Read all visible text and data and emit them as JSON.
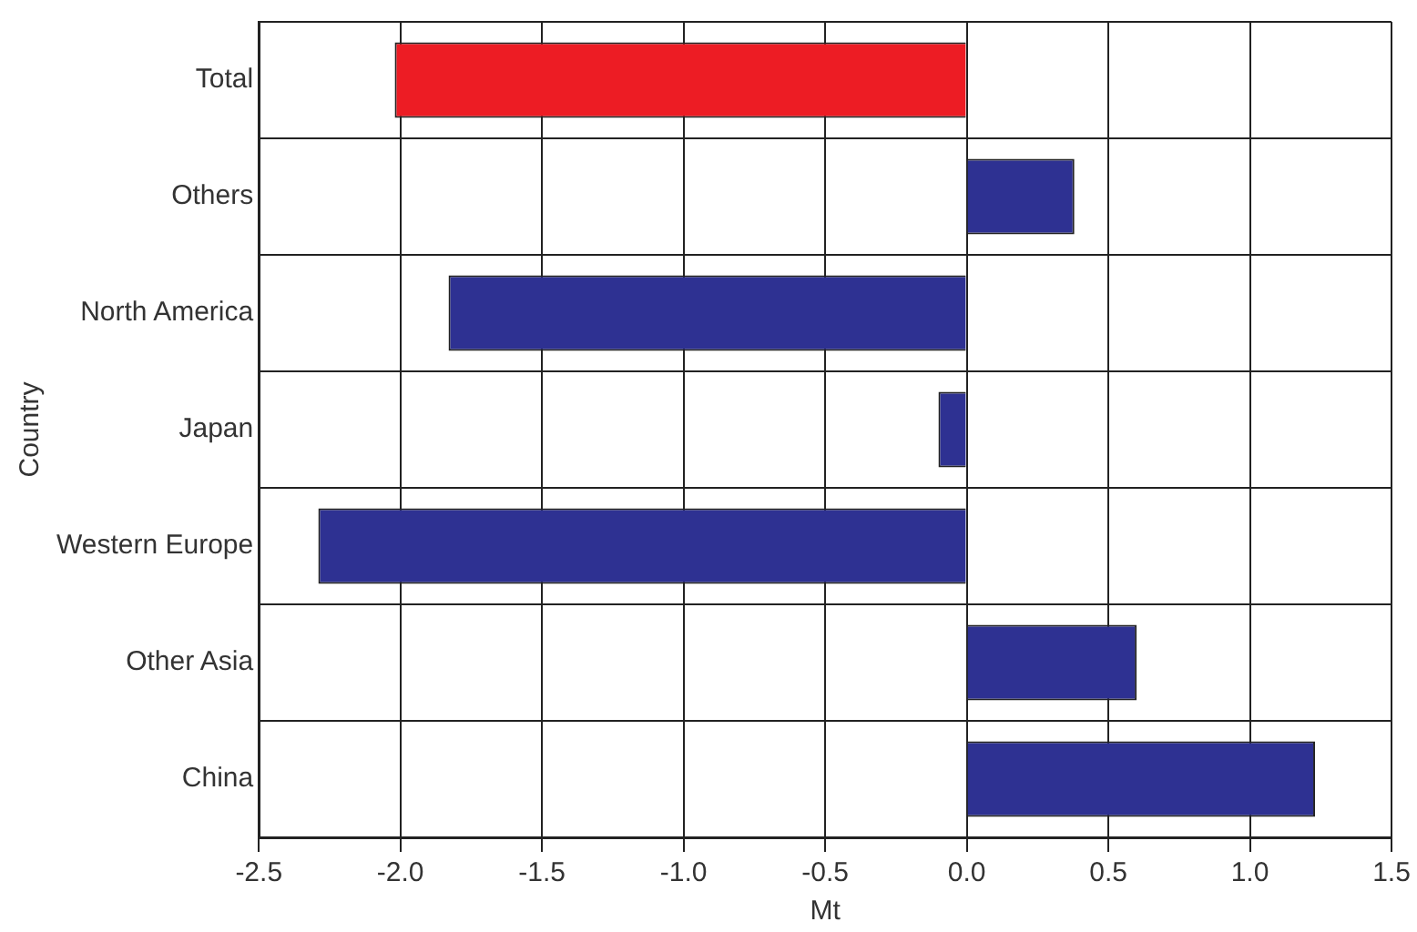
{
  "chart_data": {
    "type": "bar",
    "orientation": "horizontal",
    "xlabel": "Mt",
    "ylabel": "Country",
    "categories": [
      "Total",
      "Others",
      "North America",
      "Japan",
      "Western Europe",
      "Other Asia",
      "China"
    ],
    "values": [
      -2.02,
      0.38,
      -1.83,
      -0.1,
      -2.29,
      0.6,
      1.23
    ],
    "colors": [
      "#ed1c24",
      "#2e3192",
      "#2e3192",
      "#2e3192",
      "#2e3192",
      "#2e3192",
      "#2e3192"
    ],
    "xlim": [
      -2.5,
      1.5
    ],
    "xticks": [
      {
        "value": -2.5,
        "label": "-2.5"
      },
      {
        "value": -2,
        "label": "-2.0"
      },
      {
        "value": -1.5,
        "label": "-1.5"
      },
      {
        "value": -1,
        "label": "-1.0"
      },
      {
        "value": -0.5,
        "label": "-0.5"
      },
      {
        "value": 0,
        "label": "0.0"
      },
      {
        "value": 0.5,
        "label": "0.5"
      },
      {
        "value": 1,
        "label": "1.0"
      },
      {
        "value": 1.5,
        "label": "1.5"
      }
    ],
    "grid": true,
    "legend": false
  }
}
